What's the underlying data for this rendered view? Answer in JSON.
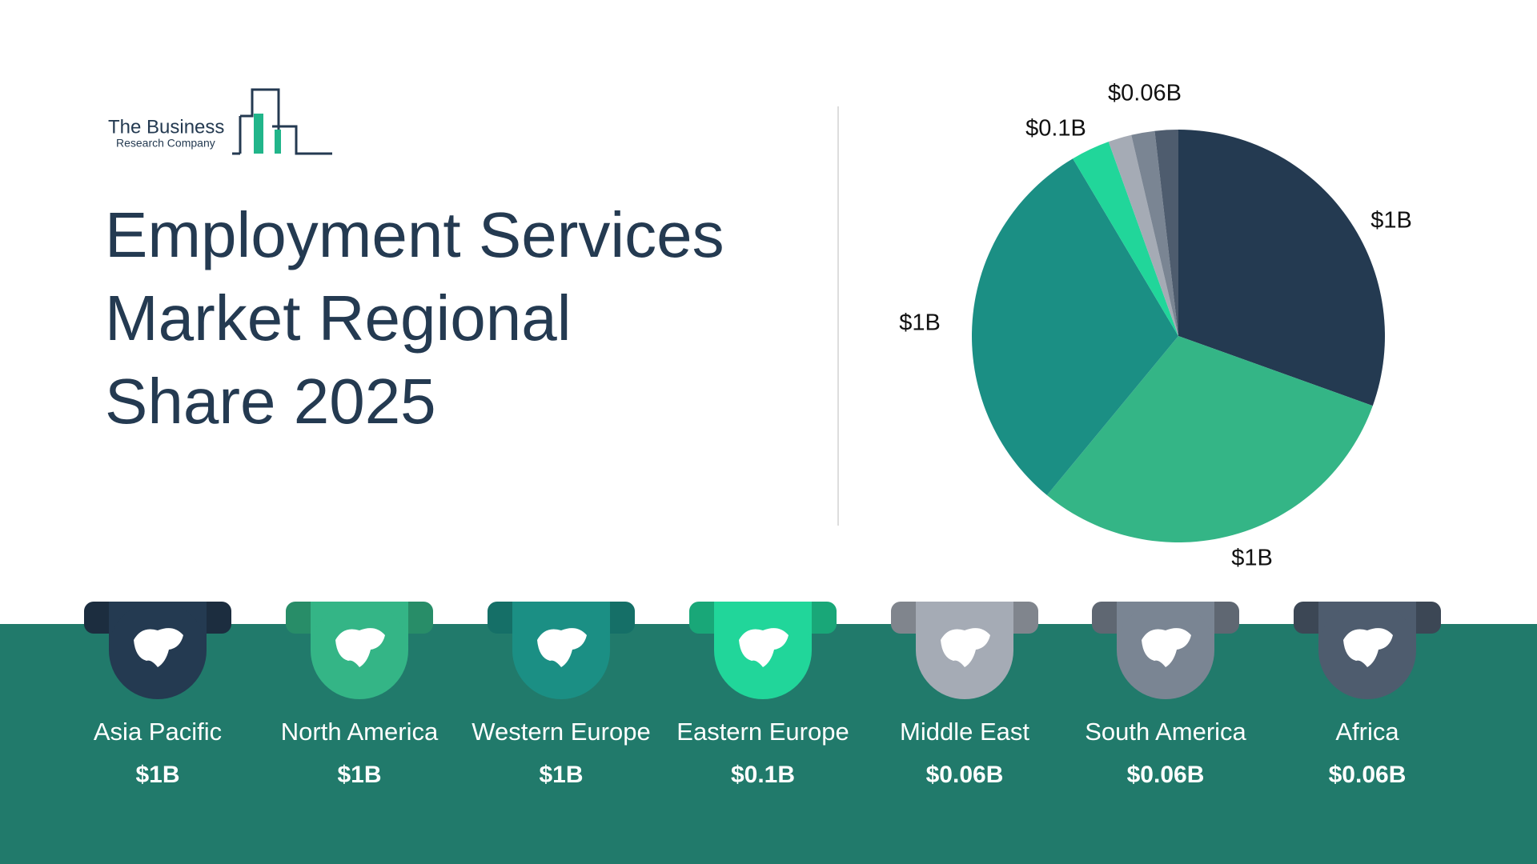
{
  "logo": {
    "line1": "The Business",
    "line2": "Research Company"
  },
  "chart_data": {
    "type": "pie",
    "title": "Employment Services Market Regional Share 2025",
    "categories": [
      "Asia Pacific",
      "North America",
      "Western Europe",
      "Eastern Europe",
      "Middle East",
      "South America",
      "Africa"
    ],
    "values": [
      1,
      1,
      1,
      0.1,
      0.06,
      0.06,
      0.06
    ],
    "value_labels": [
      "$1B",
      "$1B",
      "$1B",
      "$0.1B",
      "$0.06B",
      "$0.06B",
      "$0.06B"
    ],
    "colors": [
      "#243a51",
      "#34b586",
      "#1b8f84",
      "#21d69a",
      "#a5abb5",
      "#7a8593",
      "#4e5c6e"
    ]
  }
}
